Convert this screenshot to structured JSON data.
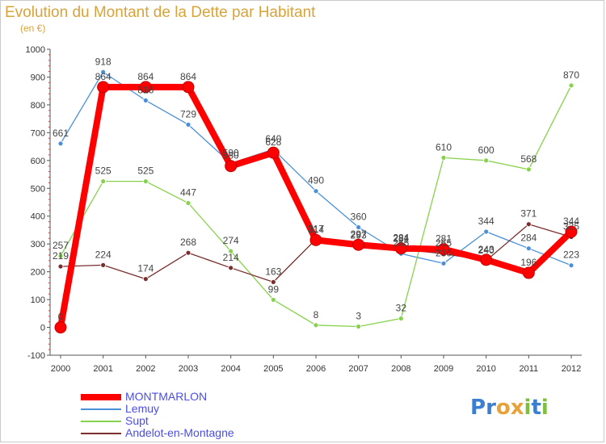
{
  "title": "Evolution du Montant de la Dette par Habitant",
  "unit": "(en €)",
  "logo": {
    "letters": [
      "P",
      "r",
      "o",
      "x",
      "i",
      "t",
      "i"
    ],
    "colors": [
      "#3a7fd0",
      "#3a7fd0",
      "#e8a23a",
      "#e8a23a",
      "#7fbf3f",
      "#3a7fd0",
      "#7fbf3f"
    ]
  },
  "chart_data": {
    "type": "line",
    "title": "Evolution du Montant de la Dette par Habitant",
    "ylabel": "(en €)",
    "xlabel": "",
    "categories": [
      "2000",
      "2001",
      "2002",
      "2003",
      "2004",
      "2005",
      "2006",
      "2007",
      "2008",
      "2009",
      "2010",
      "2011",
      "2012"
    ],
    "ylim": [
      -100,
      1000
    ],
    "yticks": [
      -100,
      0,
      100,
      200,
      300,
      400,
      500,
      600,
      700,
      800,
      900,
      1000
    ],
    "grid": false,
    "legend": "bottom-left",
    "series": [
      {
        "name": "Lemuy",
        "color": "#4a90d9",
        "values": [
          661,
          918,
          816,
          729,
          590,
          640,
          490,
          360,
          265,
          230,
          344,
          284,
          223
        ],
        "labels": [
          "661",
          "918",
          "816",
          "729",
          "590",
          "640",
          "490",
          "360",
          "265",
          "230",
          "344",
          "284",
          "223"
        ]
      },
      {
        "name": "Supt",
        "color": "#86d24c",
        "values": [
          257,
          525,
          525,
          447,
          274,
          99,
          8,
          3,
          32,
          610,
          600,
          568,
          870
        ],
        "labels": [
          "257",
          "525",
          "525",
          "447",
          "274",
          "99",
          "8",
          "3",
          "32",
          "610",
          "600",
          "568",
          "870"
        ]
      },
      {
        "name": "Andelot-en-Montagne",
        "color": "#7a2e2e",
        "values": [
          219,
          224,
          174,
          268,
          214,
          163,
          317,
          293,
          281,
          265,
          240,
          371,
          325
        ],
        "labels": [
          "219",
          "224",
          "174",
          "268",
          "214",
          "163",
          "317",
          "293",
          "281",
          "265",
          "240",
          "371",
          "325"
        ]
      },
      {
        "name": "MONTMARLON",
        "color": "#ff0000",
        "values": [
          0,
          864,
          864,
          864,
          580,
          628,
          314,
          297,
          284,
          281,
          243,
          196,
          344
        ],
        "labels": [
          "0",
          "864",
          "864",
          "864",
          "580",
          "628",
          "314",
          "297",
          "284",
          "281",
          "243",
          "196",
          "344"
        ]
      }
    ]
  },
  "legend_items": [
    {
      "label": "MONTMARLON",
      "color": "#ff0000",
      "thickness": 8
    },
    {
      "label": "Lemuy",
      "color": "#4a90d9",
      "thickness": 2
    },
    {
      "label": "Supt",
      "color": "#86d24c",
      "thickness": 2
    },
    {
      "label": "Andelot-en-Montagne",
      "color": "#7a2e2e",
      "thickness": 2
    }
  ]
}
